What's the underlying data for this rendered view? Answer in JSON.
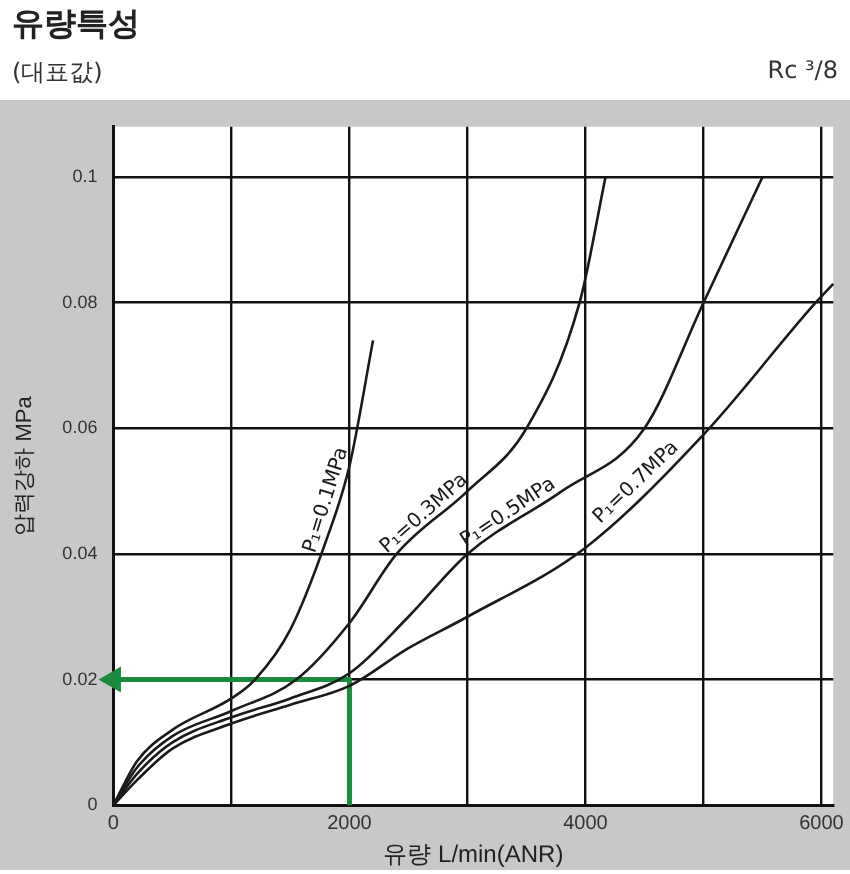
{
  "chart_data": {
    "type": "line",
    "title": "유량특성",
    "subtitle": "(대표값)",
    "annotations": [
      "Rc ³/8"
    ],
    "xlabel": "유량 L/min(ANR)",
    "ylabel": "압력강하 MPa",
    "xlim": [
      0,
      6100
    ],
    "ylim": [
      0,
      0.108
    ],
    "xticks": [
      0,
      {
        "value": 1000,
        "label": null
      },
      2000,
      {
        "value": 3000,
        "label": null
      },
      4000,
      {
        "value": 5000,
        "label": null
      },
      6000
    ],
    "yticks": [
      0,
      0.02,
      0.04,
      0.06,
      0.08,
      0.1
    ],
    "grid": true,
    "legend": false,
    "marker": "none",
    "line_style": "solid",
    "series": [
      {
        "name": "P₁=0.1MPa",
        "color": "#1a1a1a",
        "x": [
          0,
          200,
          500,
          1000,
          1200,
          1500,
          1800,
          2000,
          2200
        ],
        "values": [
          0,
          0.007,
          0.012,
          0.017,
          0.02,
          0.028,
          0.042,
          0.054,
          0.074
        ]
      },
      {
        "name": "P₁=0.3MPa",
        "color": "#1a1a1a",
        "x": [
          0,
          200,
          500,
          1000,
          1550,
          2000,
          2400,
          3000,
          3500,
          3950,
          4170
        ],
        "values": [
          0,
          0.006,
          0.011,
          0.015,
          0.02,
          0.029,
          0.04,
          0.05,
          0.06,
          0.08,
          0.1
        ]
      },
      {
        "name": "P₁=0.5MPa",
        "color": "#1a1a1a",
        "x": [
          0,
          200,
          500,
          1000,
          1500,
          2000,
          2500,
          3000,
          3800,
          4500,
          5000,
          5500
        ],
        "values": [
          0,
          0.005,
          0.01,
          0.014,
          0.017,
          0.021,
          0.03,
          0.04,
          0.05,
          0.06,
          0.08,
          0.1
        ]
      },
      {
        "name": "P₁=0.7MPa",
        "color": "#1a1a1a",
        "x": [
          0,
          200,
          500,
          1000,
          1500,
          2000,
          2500,
          3000,
          4000,
          5000,
          5950,
          6100
        ],
        "values": [
          0,
          0.004,
          0.009,
          0.013,
          0.016,
          0.019,
          0.025,
          0.03,
          0.041,
          0.059,
          0.08,
          0.083
        ]
      },
      {
        "color": "#1a8a3c",
        "x": [
          2000,
          2000,
          0
        ],
        "values": [
          0,
          0.02,
          0.02
        ]
      }
    ]
  }
}
